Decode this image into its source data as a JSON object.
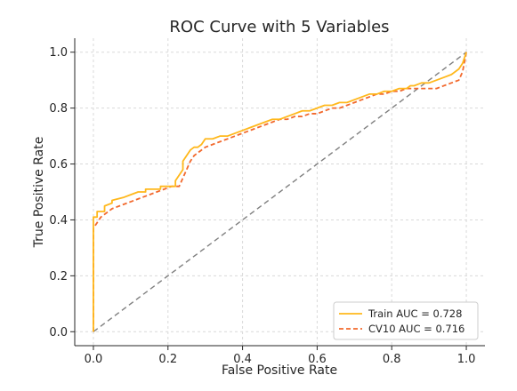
{
  "chart_data": {
    "type": "line",
    "title": "ROC Curve with 5 Variables",
    "xlabel": "False Positive Rate",
    "ylabel": "True Positive Rate",
    "xlim": [
      -0.05,
      1.05
    ],
    "ylim": [
      -0.05,
      1.05
    ],
    "xticks": [
      "0.0",
      "0.2",
      "0.4",
      "0.6",
      "0.8",
      "1.0"
    ],
    "yticks": [
      "0.0",
      "0.2",
      "0.4",
      "0.6",
      "0.8",
      "1.0"
    ],
    "grid": true,
    "legend_position": "lower-right",
    "series": [
      {
        "name": "Train AUC = 0.728",
        "color": "#ffb81c",
        "dash": "solid",
        "x": [
          0.0,
          0.0,
          0.0,
          0.01,
          0.01,
          0.03,
          0.03,
          0.05,
          0.05,
          0.08,
          0.1,
          0.12,
          0.14,
          0.14,
          0.18,
          0.18,
          0.22,
          0.22,
          0.24,
          0.24,
          0.25,
          0.26,
          0.27,
          0.28,
          0.29,
          0.3,
          0.31,
          0.32,
          0.34,
          0.36,
          0.38,
          0.4,
          0.42,
          0.44,
          0.46,
          0.48,
          0.5,
          0.52,
          0.54,
          0.56,
          0.58,
          0.6,
          0.62,
          0.64,
          0.66,
          0.68,
          0.7,
          0.72,
          0.74,
          0.76,
          0.78,
          0.8,
          0.82,
          0.84,
          0.85,
          0.86,
          0.88,
          0.9,
          0.92,
          0.94,
          0.96,
          0.98,
          0.99,
          1.0
        ],
        "y": [
          0.0,
          0.3,
          0.41,
          0.41,
          0.43,
          0.43,
          0.45,
          0.46,
          0.47,
          0.48,
          0.49,
          0.5,
          0.5,
          0.51,
          0.51,
          0.52,
          0.52,
          0.54,
          0.58,
          0.61,
          0.63,
          0.65,
          0.66,
          0.66,
          0.67,
          0.69,
          0.69,
          0.69,
          0.7,
          0.7,
          0.71,
          0.72,
          0.73,
          0.74,
          0.75,
          0.76,
          0.76,
          0.77,
          0.78,
          0.79,
          0.79,
          0.8,
          0.81,
          0.81,
          0.82,
          0.82,
          0.83,
          0.84,
          0.85,
          0.85,
          0.86,
          0.86,
          0.87,
          0.87,
          0.88,
          0.88,
          0.89,
          0.89,
          0.9,
          0.91,
          0.92,
          0.94,
          0.96,
          1.0
        ]
      },
      {
        "name": "CV10 AUC = 0.716",
        "color": "#f2692d",
        "dash": "dashed",
        "x": [
          0.0,
          0.0,
          0.0,
          0.01,
          0.02,
          0.03,
          0.05,
          0.07,
          0.09,
          0.11,
          0.13,
          0.15,
          0.17,
          0.19,
          0.21,
          0.23,
          0.24,
          0.25,
          0.26,
          0.27,
          0.28,
          0.3,
          0.32,
          0.34,
          0.36,
          0.38,
          0.4,
          0.42,
          0.44,
          0.46,
          0.48,
          0.5,
          0.52,
          0.54,
          0.56,
          0.58,
          0.6,
          0.62,
          0.64,
          0.66,
          0.68,
          0.7,
          0.72,
          0.74,
          0.76,
          0.78,
          0.8,
          0.82,
          0.84,
          0.86,
          0.88,
          0.9,
          0.92,
          0.94,
          0.96,
          0.98,
          0.99,
          1.0
        ],
        "y": [
          0.0,
          0.3,
          0.37,
          0.39,
          0.41,
          0.42,
          0.44,
          0.45,
          0.46,
          0.47,
          0.48,
          0.49,
          0.5,
          0.51,
          0.52,
          0.52,
          0.55,
          0.58,
          0.61,
          0.63,
          0.64,
          0.66,
          0.67,
          0.68,
          0.69,
          0.7,
          0.71,
          0.72,
          0.73,
          0.74,
          0.75,
          0.76,
          0.76,
          0.77,
          0.77,
          0.78,
          0.78,
          0.79,
          0.8,
          0.8,
          0.81,
          0.82,
          0.83,
          0.84,
          0.85,
          0.85,
          0.86,
          0.86,
          0.87,
          0.87,
          0.87,
          0.87,
          0.87,
          0.88,
          0.89,
          0.9,
          0.93,
          1.0
        ]
      },
      {
        "name": "",
        "color": "#7f7f7f",
        "dash": "dashed",
        "x": [
          0.0,
          1.0
        ],
        "y": [
          0.0,
          1.0
        ]
      }
    ]
  }
}
